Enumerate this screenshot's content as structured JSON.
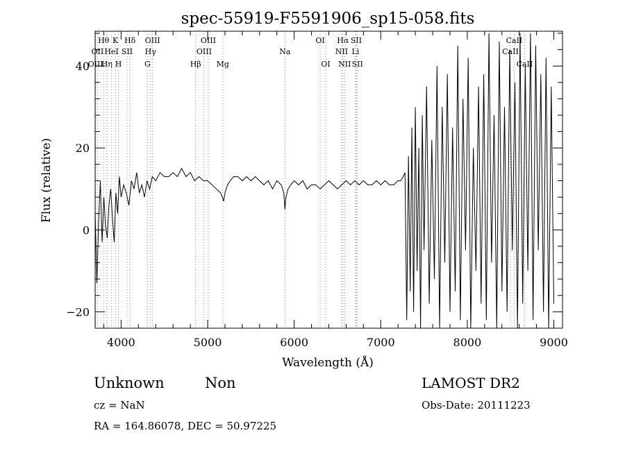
{
  "chart_data": {
    "type": "line",
    "title": "spec-55919-F5591906_sp15-058.fits",
    "xlabel": "Wavelength (Å)",
    "ylabel": "Flux (relative)",
    "xlim": [
      3700,
      9100
    ],
    "ylim": [
      -24,
      48.5
    ],
    "xticks": [
      4000,
      5000,
      6000,
      7000,
      8000,
      9000
    ],
    "yticks": [
      -20,
      0,
      20,
      40
    ],
    "grid": false,
    "legend": "none",
    "series": [
      {
        "x": [
          3700,
          3720,
          3740,
          3760,
          3780,
          3800,
          3820,
          3840,
          3860,
          3880,
          3900,
          3920,
          3940,
          3960,
          3980,
          4000,
          4030,
          4060,
          4090,
          4120,
          4150,
          4180,
          4210,
          4240,
          4270,
          4300,
          4330,
          4360,
          4400,
          4450,
          4500,
          4550,
          4600,
          4650,
          4700,
          4750,
          4800,
          4850,
          4900,
          4950,
          5000,
          5050,
          5100,
          5150,
          5170,
          5185,
          5200,
          5230,
          5260,
          5300,
          5350,
          5400,
          5450,
          5500,
          5550,
          5600,
          5650,
          5700,
          5750,
          5800,
          5850,
          5880,
          5893,
          5905,
          5930,
          5960,
          6000,
          6050,
          6100,
          6150,
          6200,
          6250,
          6300,
          6350,
          6400,
          6450,
          6500,
          6550,
          6600,
          6650,
          6700,
          6750,
          6800,
          6850,
          6900,
          6950,
          7000,
          7050,
          7100,
          7150,
          7200,
          7230,
          7260,
          7280,
          7300,
          7320,
          7340,
          7360,
          7380,
          7400,
          7420,
          7440,
          7460,
          7480,
          7500,
          7530,
          7560,
          7590,
          7620,
          7650,
          7680,
          7710,
          7740,
          7770,
          7800,
          7830,
          7860,
          7890,
          7920,
          7950,
          7980,
          8010,
          8040,
          8070,
          8100,
          8130,
          8160,
          8190,
          8220,
          8250,
          8280,
          8310,
          8340,
          8370,
          8400,
          8430,
          8460,
          8490,
          8520,
          8550,
          8580,
          8610,
          8640,
          8670,
          8700,
          8730,
          8760,
          8790,
          8820,
          8850,
          8880,
          8910,
          8940,
          8970,
          9000
        ],
        "y": [
          4,
          -13,
          2,
          12,
          -3,
          8,
          1,
          -2,
          6,
          10,
          3,
          -3,
          9,
          4,
          13,
          8,
          11,
          9,
          6,
          12,
          10,
          14,
          9,
          11,
          8,
          12,
          10,
          13,
          12,
          14,
          13,
          13,
          14,
          13,
          15,
          13,
          14,
          12,
          13,
          12,
          12,
          11,
          10,
          9,
          8,
          7,
          9,
          11,
          12,
          13,
          13,
          12,
          13,
          12,
          13,
          12,
          11,
          12,
          10,
          12,
          11,
          9,
          5,
          8,
          10,
          11,
          12,
          11,
          12,
          10,
          11,
          11,
          10,
          11,
          12,
          11,
          10,
          11,
          12,
          11,
          12,
          11,
          12,
          11,
          11,
          12,
          11,
          12,
          11,
          11,
          12,
          12,
          13,
          14,
          -22,
          18,
          -15,
          25,
          -20,
          30,
          -10,
          20,
          -25,
          28,
          -5,
          35,
          -18,
          22,
          -12,
          40,
          -24,
          30,
          -8,
          38,
          -20,
          25,
          -15,
          45,
          -22,
          32,
          -5,
          42,
          -25,
          20,
          -10,
          35,
          -18,
          38,
          -22,
          48,
          -8,
          28,
          -24,
          46,
          -15,
          30,
          -20,
          44,
          -5,
          36,
          -24,
          48,
          -18,
          40,
          -10,
          48,
          -22,
          45,
          -5,
          38,
          -20,
          42,
          -24,
          35,
          -18
        ]
      }
    ],
    "line_markers": [
      {
        "name": "H&#952;",
        "x": 3798,
        "row": 1
      },
      {
        "name": "OII",
        "x": 3727,
        "row": 2
      },
      {
        "name": "OIII",
        "x": 3705,
        "row": 3
      },
      {
        "name": "H&#951;",
        "x": 3835,
        "row": 3
      },
      {
        "name": "K",
        "x": 3934,
        "row": 1
      },
      {
        "name": "HeI",
        "x": 3889,
        "row": 2
      },
      {
        "name": "SII",
        "x": 4069,
        "row": 2
      },
      {
        "name": "H",
        "x": 3969,
        "row": 3
      },
      {
        "name": "H&#948;",
        "x": 4102,
        "row": 1
      },
      {
        "name": "OIII",
        "x": 4363,
        "row": 1
      },
      {
        "name": "H&#947;",
        "x": 4340,
        "row": 2
      },
      {
        "name": "G",
        "x": 4305,
        "row": 3
      },
      {
        "name": "OIII",
        "x": 5007,
        "row": 1
      },
      {
        "name": "OIII",
        "x": 4959,
        "row": 2
      },
      {
        "name": "H&#946;",
        "x": 4861,
        "row": 3
      },
      {
        "name": "Mg",
        "x": 5175,
        "row": 3
      },
      {
        "name": "Na",
        "x": 5893,
        "row": 2
      },
      {
        "name": "OI",
        "x": 6300,
        "row": 1
      },
      {
        "name": "OI",
        "x": 6364,
        "row": 3
      },
      {
        "name": "H&#945;",
        "x": 6563,
        "row": 1
      },
      {
        "name": "SII",
        "x": 6717,
        "row": 1
      },
      {
        "name": "NII",
        "x": 6548,
        "row": 2
      },
      {
        "name": "Li",
        "x": 6708,
        "row": 2
      },
      {
        "name": "NII",
        "x": 6583,
        "row": 3
      },
      {
        "name": "SII",
        "x": 6731,
        "row": 3
      },
      {
        "name": "CaII",
        "x": 8542,
        "row": 1
      },
      {
        "name": "CaII",
        "x": 8498,
        "row": 2
      },
      {
        "name": "CaII",
        "x": 8662,
        "row": 3
      }
    ]
  },
  "info": {
    "class": "Unknown",
    "subclass": "Non",
    "survey": "LAMOST DR2",
    "cz": "cz = NaN",
    "obs_date": "Obs-Date: 20111223",
    "radec": "RA = 164.86078, DEC =  50.97225"
  }
}
